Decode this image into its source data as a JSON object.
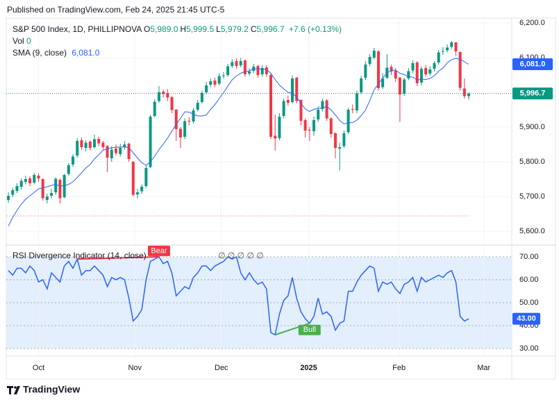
{
  "header": {
    "published": "Published on TradingView.com, Feb 24, 2025 21:45 UTC-5"
  },
  "footer": {
    "brand": "TradingView"
  },
  "chart_data": [
    {
      "type": "candlestick",
      "title": "S&P 500 Index, 1D, PHILLIPNOVA",
      "ohlc_legend": [
        {
          "key": "O",
          "value": "5,989.0"
        },
        {
          "key": "H",
          "value": "5,999.5"
        },
        {
          "key": "L",
          "value": "5,979.2"
        },
        {
          "key": "C",
          "value": "5,996.7"
        }
      ],
      "change_legend": "+7.6 (+0.13%)",
      "volume_legend": {
        "key": "Vol",
        "value": "0"
      },
      "up_color": "#089981",
      "down_color": "#f23645",
      "open": [
        5690,
        5705,
        5716,
        5728,
        5742,
        5752,
        5740,
        5760,
        5750,
        5690,
        5702,
        5712,
        5748,
        5698,
        5765,
        5792,
        5818,
        5862,
        5840,
        5858,
        5842,
        5866,
        5855,
        5845,
        5810,
        5838,
        5822,
        5842,
        5852,
        5800,
        5706,
        5715,
        5730,
        5785,
        5932,
        5975,
        6002,
        5998,
        5986,
        5950,
        5895,
        5872,
        5918,
        5916,
        5950,
        5972,
        6000,
        6022,
        6034,
        6025,
        6048,
        6050,
        6076,
        6090,
        6078,
        6092,
        6054,
        6062,
        6076,
        6052,
        6072,
        6050,
        5875,
        5868,
        5932,
        5978,
        5972,
        6042,
        5978,
        5920,
        5892,
        5888,
        5922,
        5952,
        5977,
        5925,
        5882,
        5838,
        5845,
        5885,
        5952,
        5948,
        6000,
        6042,
        6082,
        6100,
        6118,
        6015,
        6042,
        6073,
        6062,
        6042,
        5996,
        6040,
        6063,
        6086,
        6028,
        6070,
        6054,
        6068,
        6086,
        6117,
        6121,
        6131,
        6144,
        6116,
        6011,
        5989
      ],
      "high": [
        5712,
        5725,
        5738,
        5752,
        5760,
        5758,
        5768,
        5766,
        5752,
        5708,
        5722,
        5755,
        5752,
        5765,
        5796,
        5822,
        5868,
        5870,
        5862,
        5862,
        5878,
        5872,
        5860,
        5848,
        5845,
        5850,
        5852,
        5860,
        5855,
        5802,
        5722,
        5735,
        5790,
        5935,
        5980,
        6018,
        6008,
        6010,
        5990,
        5952,
        5900,
        5925,
        5928,
        5955,
        5978,
        6005,
        6030,
        6040,
        6042,
        6055,
        6058,
        6082,
        6095,
        6098,
        6099,
        6095,
        6070,
        6082,
        6080,
        6078,
        6078,
        6055,
        5935,
        5940,
        5982,
        5990,
        6049,
        6045,
        5980,
        5925,
        5900,
        5930,
        5960,
        5982,
        5980,
        5928,
        5885,
        5855,
        5890,
        5955,
        5965,
        6005,
        6048,
        6090,
        6110,
        6128,
        6122,
        6055,
        6110,
        6080,
        6070,
        6045,
        6042,
        6070,
        6092,
        6090,
        6075,
        6078,
        6075,
        6090,
        6122,
        6130,
        6138,
        6148,
        6145,
        6118,
        6040,
        5999.5
      ],
      "low": [
        5682,
        5698,
        5710,
        5720,
        5735,
        5730,
        5735,
        5742,
        5688,
        5680,
        5695,
        5705,
        5680,
        5695,
        5760,
        5785,
        5812,
        5835,
        5830,
        5832,
        5838,
        5845,
        5835,
        5770,
        5800,
        5818,
        5815,
        5835,
        5800,
        5700,
        5695,
        5708,
        5725,
        5782,
        5928,
        5970,
        5985,
        5975,
        5940,
        5860,
        5840,
        5865,
        5905,
        5910,
        5945,
        5968,
        5995,
        6015,
        6015,
        6020,
        6040,
        6045,
        6070,
        6068,
        6072,
        6045,
        6048,
        6055,
        6042,
        6045,
        6045,
        5865,
        5832,
        5862,
        5925,
        5962,
        5968,
        5968,
        5905,
        5870,
        5860,
        5875,
        5915,
        5945,
        5918,
        5870,
        5810,
        5775,
        5840,
        5880,
        5940,
        5940,
        5995,
        6035,
        6075,
        6095,
        6005,
        6010,
        6038,
        6050,
        6030,
        5915,
        5990,
        6035,
        6055,
        6018,
        6020,
        6045,
        6048,
        6060,
        6080,
        6108,
        6115,
        6125,
        6105,
        6005,
        5982,
        5979.2
      ],
      "close": [
        5702,
        5718,
        5730,
        5745,
        5750,
        5738,
        5762,
        5752,
        5695,
        5700,
        5710,
        5751,
        5695,
        5762,
        5790,
        5815,
        5860,
        5842,
        5855,
        5840,
        5865,
        5853,
        5842,
        5812,
        5835,
        5825,
        5840,
        5850,
        5808,
        5705,
        5712,
        5728,
        5782,
        5930,
        5973,
        6000,
        5995,
        5985,
        5949,
        5894,
        5870,
        5917,
        5916,
        5948,
        5970,
        5998,
        6020,
        6032,
        6022,
        6047,
        6049,
        6075,
        6087,
        6076,
        6090,
        6052,
        6060,
        6074,
        6050,
        6070,
        6052,
        5872,
        5867,
        5930,
        5975,
        5970,
        6040,
        5975,
        5918,
        5890,
        5890,
        5920,
        5950,
        5975,
        5925,
        5880,
        5840,
        5842,
        5882,
        5950,
        5950,
        5997,
        6040,
        6080,
        6102,
        6120,
        6012,
        6040,
        6071,
        6060,
        6040,
        5994,
        6037,
        6061,
        6084,
        6026,
        6068,
        6052,
        6066,
        6084,
        6115,
        6119,
        6129,
        6144,
        6118,
        6013,
        5989.1,
        5996.7
      ],
      "sma": {
        "name": "SMA (9, close)",
        "color": "#2962ff",
        "value_label": "6,081.0",
        "values": [
          5615,
          5640,
          5660,
          5678,
          5692,
          5702,
          5712,
          5722,
          5725,
          5728,
          5732,
          5735,
          5730,
          5731,
          5735,
          5742,
          5755,
          5768,
          5782,
          5792,
          5808,
          5820,
          5833,
          5838,
          5840,
          5842,
          5842,
          5843,
          5840,
          5826,
          5811,
          5797,
          5790,
          5800,
          5816,
          5835,
          5851,
          5868,
          5888,
          5908,
          5925,
          5944,
          5943,
          5937,
          5932,
          5932,
          5935,
          5951,
          5965,
          5982,
          5999,
          6018,
          6036,
          6047,
          6055,
          6060,
          6062,
          6068,
          6067,
          6067,
          6066,
          6055,
          6037,
          6021,
          6010,
          6000,
          5997,
          5987,
          5968,
          5952,
          5945,
          5951,
          5954,
          5954,
          5960,
          5949,
          5935,
          5919,
          5909,
          5912,
          5913,
          5920,
          5933,
          5949,
          5976,
          6007,
          6024,
          6041,
          6056,
          6063,
          6064,
          6055,
          6051,
          6045,
          6044,
          6035,
          6038,
          6037,
          6040,
          6048,
          6061,
          6070,
          6085,
          6094,
          6098,
          6095,
          6088,
          6081
        ]
      },
      "current_price_label": "5,996.7",
      "reference_line": 5644,
      "ylim": [
        5562,
        6214
      ],
      "yticks": [
        {
          "value": 5600,
          "label": "5,600.0"
        },
        {
          "value": 5700,
          "label": "5,700.0"
        },
        {
          "value": 5800,
          "label": "5,800.0"
        },
        {
          "value": 5900,
          "label": "5,900.0"
        },
        {
          "value": 6000,
          "label": "6,000.0"
        },
        {
          "value": 6100,
          "label": "6,100.0"
        },
        {
          "value": 6200,
          "label": "6,200.0"
        }
      ],
      "xlim": [
        -0.5,
        117
      ],
      "xticks": [
        {
          "value": 7,
          "label": "Oct"
        },
        {
          "value": 29.4,
          "label": "Nov"
        },
        {
          "value": 49.5,
          "label": "Dec"
        },
        {
          "value": 69.8,
          "label": "2025"
        },
        {
          "value": 90.8,
          "label": "Feb"
        },
        {
          "value": 110.5,
          "label": "Mar"
        }
      ]
    },
    {
      "type": "line",
      "title": "RSI Divergence Indicator (14, close)",
      "legend_values": "∅ ∅ ∅ ∅ ∅",
      "color": "#2962ff",
      "band_color": "#e3effc",
      "values": [
        64,
        62,
        65,
        65,
        63,
        66,
        64,
        59,
        60,
        56,
        63,
        61,
        59,
        66,
        68,
        65,
        69,
        62,
        64,
        64,
        66,
        64,
        62,
        57,
        61,
        60,
        61,
        60,
        52,
        42,
        44,
        47,
        60,
        68,
        69,
        70,
        67,
        68,
        63,
        53,
        55,
        57,
        56,
        61,
        63,
        66,
        66,
        64,
        66,
        67,
        68,
        70,
        69,
        70,
        63,
        60,
        63,
        60,
        58,
        59,
        56,
        37,
        36,
        45,
        51,
        53,
        61,
        52,
        46,
        43,
        41,
        44,
        52,
        45,
        46,
        44,
        38,
        41,
        42,
        55,
        55,
        59,
        62,
        64,
        66,
        65,
        55,
        59,
        58,
        59,
        56,
        54,
        58,
        59,
        61,
        55,
        61,
        59,
        60,
        61,
        62,
        61,
        63,
        64,
        59,
        44,
        42,
        43
      ],
      "value_label": "43.00",
      "band": [
        30,
        70
      ],
      "divergences": [
        {
          "label": "Bear",
          "start": 16,
          "end": 35,
          "color": "#f23645"
        },
        {
          "label": "Bull",
          "start": 62,
          "end": 70,
          "color": "#4caf50"
        }
      ],
      "ylim": [
        26.7,
        74.8
      ],
      "yticks": [
        {
          "value": 30,
          "label": "30.00"
        },
        {
          "value": 40,
          "label": "40.00"
        },
        {
          "value": 50,
          "label": "50.00"
        },
        {
          "value": 60,
          "label": "60.00"
        },
        {
          "value": 70,
          "label": "70.00"
        }
      ]
    }
  ]
}
